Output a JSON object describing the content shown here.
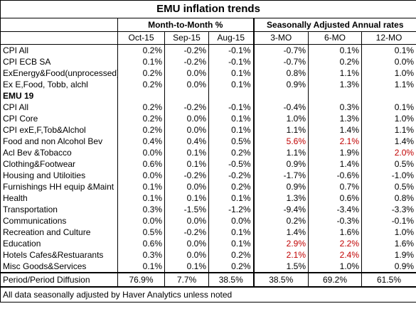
{
  "title": "EMU inflation trends",
  "group_headers": {
    "mom": "Month-to-Month %",
    "saar": "Seasonally Adjusted Annual rates"
  },
  "columns": [
    "Oct-15",
    "Sep-15",
    "Aug-15",
    "3-MO",
    "6-MO",
    "12-MO"
  ],
  "rows": [
    {
      "label": "CPI All",
      "bold": false,
      "values": [
        "0.2%",
        "-0.2%",
        "-0.1%",
        "-0.7%",
        "0.1%",
        "0.1%"
      ],
      "red": [
        false,
        false,
        false,
        false,
        false,
        false
      ]
    },
    {
      "label": "CPI ECB SA",
      "bold": false,
      "values": [
        "0.1%",
        "-0.2%",
        "-0.1%",
        "-0.7%",
        "0.2%",
        "0.0%"
      ],
      "red": [
        false,
        false,
        false,
        false,
        false,
        false
      ]
    },
    {
      "label": "ExEnergy&Food(unprocessed)",
      "bold": false,
      "values": [
        "0.2%",
        "0.0%",
        "0.1%",
        "0.8%",
        "1.1%",
        "1.0%"
      ],
      "red": [
        false,
        false,
        false,
        false,
        false,
        false
      ]
    },
    {
      "label": "Ex E,Food, Tobb, alchl",
      "bold": false,
      "values": [
        "0.2%",
        "0.0%",
        "0.1%",
        "0.9%",
        "1.3%",
        "1.1%"
      ],
      "red": [
        false,
        false,
        false,
        false,
        false,
        false
      ]
    },
    {
      "label": "EMU 19",
      "bold": true,
      "values": [
        "",
        "",
        "",
        "",
        "",
        ""
      ],
      "red": [
        false,
        false,
        false,
        false,
        false,
        false
      ]
    },
    {
      "label": "CPI All",
      "bold": false,
      "values": [
        "0.2%",
        "-0.2%",
        "-0.1%",
        "-0.4%",
        "0.3%",
        "0.1%"
      ],
      "red": [
        false,
        false,
        false,
        false,
        false,
        false
      ]
    },
    {
      "label": " CPI Core",
      "bold": false,
      "values": [
        "0.2%",
        "0.0%",
        "0.1%",
        "1.0%",
        "1.3%",
        "1.0%"
      ],
      "red": [
        false,
        false,
        false,
        false,
        false,
        false
      ]
    },
    {
      "label": " CPI exE,F,Tob&Alchol",
      "bold": false,
      "values": [
        "0.2%",
        "0.0%",
        "0.1%",
        "1.1%",
        "1.4%",
        "1.1%"
      ],
      "red": [
        false,
        false,
        false,
        false,
        false,
        false
      ]
    },
    {
      "label": "Food and non Alcohol Bev",
      "bold": false,
      "values": [
        "0.4%",
        "0.4%",
        "0.5%",
        "5.6%",
        "2.1%",
        "1.4%"
      ],
      "red": [
        false,
        false,
        false,
        true,
        true,
        false
      ]
    },
    {
      "label": "Acl Bev &Tobacco",
      "bold": false,
      "values": [
        "0.0%",
        "0.1%",
        "0.2%",
        "1.1%",
        "1.9%",
        "2.0%"
      ],
      "red": [
        false,
        false,
        false,
        false,
        false,
        true
      ]
    },
    {
      "label": "Clothing&Footwear",
      "bold": false,
      "values": [
        "0.6%",
        "0.1%",
        "-0.5%",
        "0.9%",
        "1.4%",
        "0.5%"
      ],
      "red": [
        false,
        false,
        false,
        false,
        false,
        false
      ]
    },
    {
      "label": "Housing and Utiloities",
      "bold": false,
      "values": [
        "0.0%",
        "-0.2%",
        "-0.2%",
        "-1.7%",
        "-0.6%",
        "-1.0%"
      ],
      "red": [
        false,
        false,
        false,
        false,
        false,
        false
      ]
    },
    {
      "label": "Furnishings HH equip &Maint",
      "bold": false,
      "values": [
        "0.1%",
        "0.0%",
        "0.2%",
        "0.9%",
        "0.7%",
        "0.5%"
      ],
      "red": [
        false,
        false,
        false,
        false,
        false,
        false
      ]
    },
    {
      "label": "Health",
      "bold": false,
      "values": [
        "0.1%",
        "0.1%",
        "0.1%",
        "1.3%",
        "0.6%",
        "0.8%"
      ],
      "red": [
        false,
        false,
        false,
        false,
        false,
        false
      ]
    },
    {
      "label": "Transportation",
      "bold": false,
      "values": [
        "0.3%",
        "-1.5%",
        "-1.2%",
        "-9.4%",
        "-3.4%",
        "-3.3%"
      ],
      "red": [
        false,
        false,
        false,
        false,
        false,
        false
      ]
    },
    {
      "label": "Communications",
      "bold": false,
      "values": [
        "0.0%",
        "0.0%",
        "0.0%",
        "0.2%",
        "-0.3%",
        "-0.1%"
      ],
      "red": [
        false,
        false,
        false,
        false,
        false,
        false
      ]
    },
    {
      "label": "Recreation and Culture",
      "bold": false,
      "values": [
        "0.5%",
        "-0.2%",
        "0.1%",
        "1.4%",
        "1.6%",
        "1.0%"
      ],
      "red": [
        false,
        false,
        false,
        false,
        false,
        false
      ]
    },
    {
      "label": "Education",
      "bold": false,
      "values": [
        "0.6%",
        "0.0%",
        "0.1%",
        "2.9%",
        "2.2%",
        "1.6%"
      ],
      "red": [
        false,
        false,
        false,
        true,
        true,
        false
      ]
    },
    {
      "label": "Hotels Cafes&Restuarants",
      "bold": false,
      "values": [
        "0.3%",
        "0.0%",
        "0.2%",
        "2.1%",
        "2.4%",
        "1.9%"
      ],
      "red": [
        false,
        false,
        false,
        true,
        true,
        false
      ]
    },
    {
      "label": "Misc Goods&Services",
      "bold": false,
      "values": [
        "0.1%",
        "0.1%",
        "0.2%",
        "1.5%",
        "1.0%",
        "0.9%"
      ],
      "red": [
        false,
        false,
        false,
        false,
        false,
        false
      ]
    }
  ],
  "diffusion": {
    "label": "Period/Period Diffusion",
    "values": [
      "76.9%",
      "7.7%",
      "38.5%",
      "38.5%",
      "69.2%",
      "61.5%"
    ]
  },
  "footnote": "All data seasonally adjusted by Haver Analytics unless noted",
  "colors": {
    "highlight_red": "#c00000",
    "text": "#000000",
    "background": "#ffffff"
  }
}
